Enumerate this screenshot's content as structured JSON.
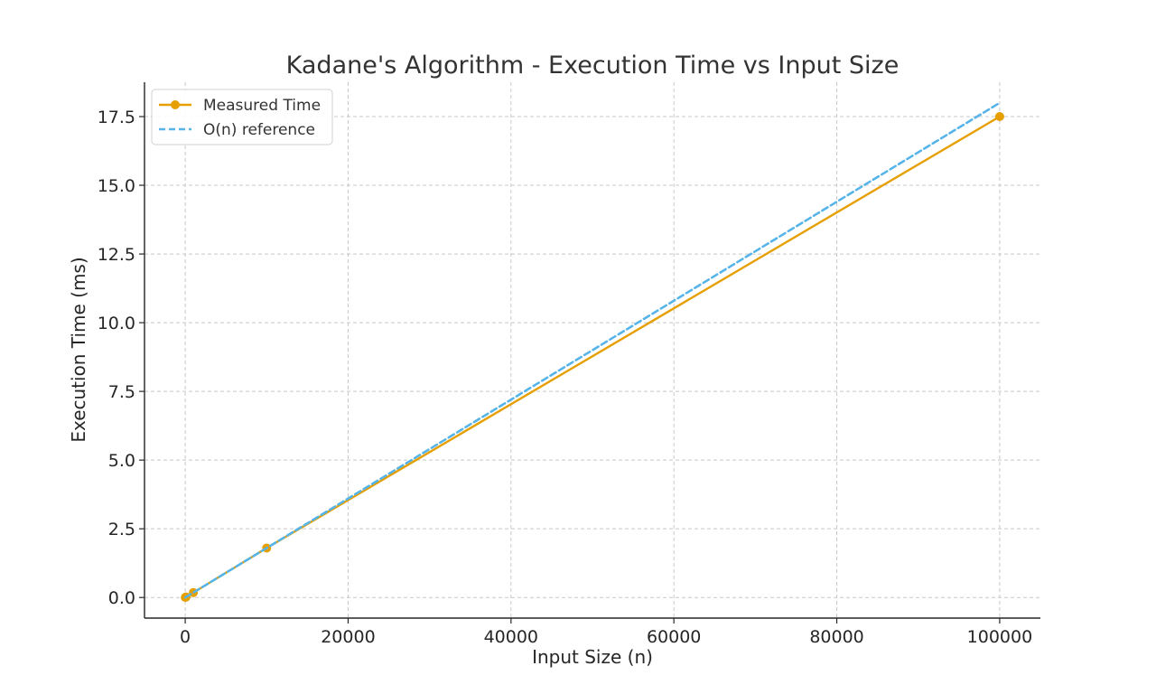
{
  "chart_data": {
    "type": "line",
    "title": "Kadane's Algorithm - Execution Time vs Input Size",
    "xlabel": "Input Size (n)",
    "ylabel": "Execution Time (ms)",
    "xlim": [
      -5000,
      105000
    ],
    "ylim": [
      -0.75,
      18.75
    ],
    "xticks": [
      0,
      20000,
      40000,
      60000,
      80000,
      100000
    ],
    "xtick_labels": [
      "0",
      "20000",
      "40000",
      "60000",
      "80000",
      "100000"
    ],
    "yticks": [
      0,
      2.5,
      5,
      7.5,
      10,
      12.5,
      15,
      17.5
    ],
    "ytick_labels": [
      "0.0",
      "2.5",
      "5.0",
      "7.5",
      "10.0",
      "12.5",
      "15.0",
      "17.5"
    ],
    "grid": true,
    "legend_position": "upper-left",
    "series": [
      {
        "name": "Measured Time",
        "x": [
          10,
          100,
          1000,
          10000,
          100000
        ],
        "y": [
          0.003,
          0.02,
          0.18,
          1.8,
          17.5
        ],
        "color": "#E69F00",
        "style": "solid",
        "marker": "circle"
      },
      {
        "name": "O(n) reference",
        "x": [
          10,
          100,
          1000,
          10000,
          100000
        ],
        "y": [
          0.0018,
          0.018,
          0.18,
          1.8,
          18
        ],
        "color": "#56B4E9",
        "style": "dashed",
        "marker": "none"
      }
    ]
  }
}
